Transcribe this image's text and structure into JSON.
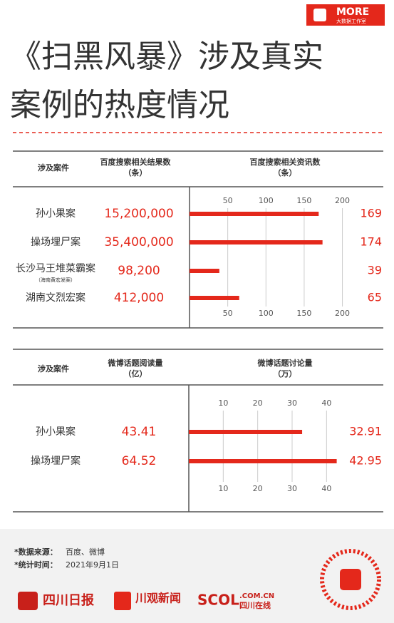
{
  "header": {
    "brand": "MORE",
    "brand_sub": "大数据工作室",
    "title_lines": [
      "《扫黑风暴》涉及真实",
      "案例的热度情况"
    ]
  },
  "chart_data": [
    {
      "type": "bar",
      "col1_header": "涉及案件",
      "col2_header": [
        "百度搜索相关结果数",
        "（条）"
      ],
      "col3_header": [
        "百度搜索相关资讯数",
        "（条）"
      ],
      "categories": [
        "孙小果案",
        "操场埋尸案",
        "长沙马王堆菜霸案",
        "湖南文烈宏案"
      ],
      "category_sublabels": [
        null,
        null,
        "（海南黄宏发案）",
        null
      ],
      "table_values": [
        "15,200,000",
        "35,400,000",
        "98,200",
        "412,000"
      ],
      "values": [
        169,
        174,
        39,
        65
      ],
      "color": "#e4281b",
      "xlim": [
        0,
        220
      ],
      "xticks": [
        50,
        100,
        150,
        200
      ]
    },
    {
      "type": "bar",
      "col1_header": "涉及案件",
      "col2_header": [
        "微博话题阅读量",
        "（亿）"
      ],
      "col3_header": [
        "微博话题讨论量",
        "（万）"
      ],
      "categories": [
        "孙小果案",
        "操场埋尸案"
      ],
      "category_sublabels": [
        null,
        null
      ],
      "table_values": [
        "43.41",
        "64.52"
      ],
      "values": [
        32.91,
        42.95
      ],
      "color": "#e4281b",
      "xlim": [
        0,
        48
      ],
      "xticks": [
        10,
        20,
        30,
        40
      ]
    }
  ],
  "footer": {
    "source_label": "*数据来源：",
    "source": "百度、微博",
    "date_label": "*统计时间：",
    "date": "2021年9月1日",
    "logos": [
      "四川日报",
      "川观新闻",
      "SCOL",
      ".COM.CN",
      "四川在线"
    ]
  }
}
